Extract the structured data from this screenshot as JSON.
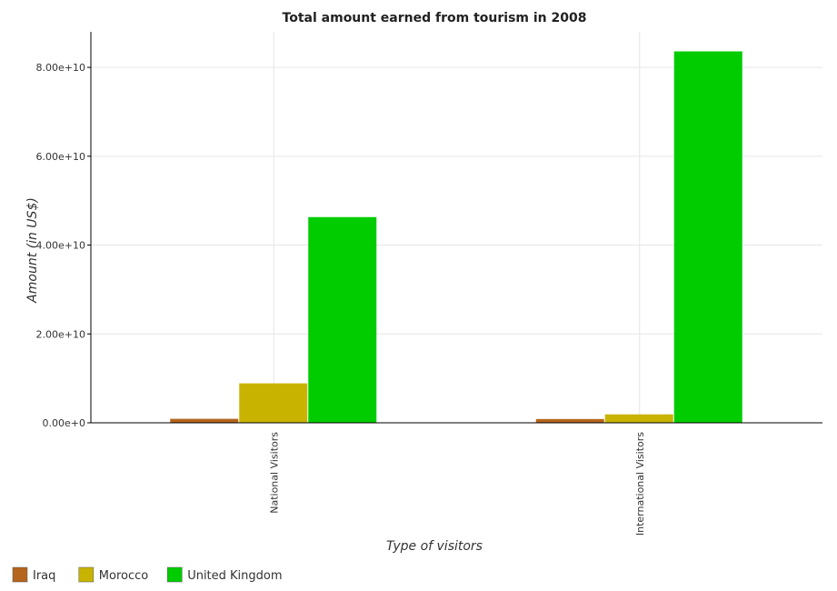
{
  "chart_data": {
    "type": "bar",
    "title": "Total amount earned from tourism in 2008",
    "xlabel": "Type of visitors",
    "ylabel": "Amount (in US$)",
    "categories": [
      "National Visitors",
      "International Visitors"
    ],
    "series": [
      {
        "name": "Iraq",
        "color": "#b5651d",
        "values": [
          900000000,
          850000000
        ]
      },
      {
        "name": "Morocco",
        "color": "#c8b400",
        "values": [
          8880000000,
          1900000000
        ]
      },
      {
        "name": "United Kingdom",
        "color": "#00cc00",
        "values": [
          46300000000,
          83600000000
        ]
      }
    ],
    "ylim": [
      0,
      88000000000
    ],
    "yticks": [
      0,
      20000000000,
      40000000000,
      60000000000,
      80000000000
    ],
    "ytick_labels": [
      "0.00e+0",
      "2.00e+10",
      "4.00e+10",
      "6.00e+10",
      "8.00e+10"
    ],
    "grid": true,
    "legend_position": "bottom-left"
  }
}
